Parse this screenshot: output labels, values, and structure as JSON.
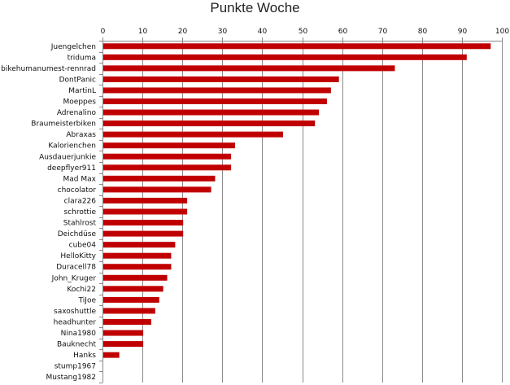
{
  "chart_data": {
    "type": "bar",
    "orientation": "horizontal",
    "title": "Punkte Woche",
    "xlabel": "",
    "ylabel": "",
    "xlim": [
      0,
      100
    ],
    "x_ticks": [
      0,
      10,
      20,
      30,
      40,
      50,
      60,
      70,
      80,
      90,
      100
    ],
    "x_axis_position": "top",
    "grid": true,
    "legend": "none",
    "bar_color": "#c00000",
    "categories": [
      "Juengelchen",
      "triduma",
      "bikehumanumest-rennrad",
      "DontPanic",
      "MartinL",
      "Moeppes",
      "Adrenalino",
      "Braumeisterbiken",
      "Abraxas",
      "Kalorienchen",
      "Ausdauerjunkie",
      "deepflyer911",
      "Mad Max",
      "chocolator",
      "clara226",
      "schrottie",
      "Stahlrost",
      "Deichdüse",
      "cube04",
      "HelloKitty",
      "Duracell78",
      "John_Kruger",
      "Kochi22",
      "TiJoe",
      "saxoshuttle",
      "headhunter",
      "Nina1980",
      "Bauknecht",
      "Hanks",
      "stump1967",
      "Mustang1982"
    ],
    "values": [
      97,
      91,
      73,
      59,
      57,
      56,
      54,
      53,
      45,
      33,
      32,
      32,
      28,
      27,
      21,
      21,
      20,
      20,
      18,
      17,
      17,
      16,
      15,
      14,
      13,
      12,
      10,
      10,
      4,
      0,
      0
    ]
  }
}
